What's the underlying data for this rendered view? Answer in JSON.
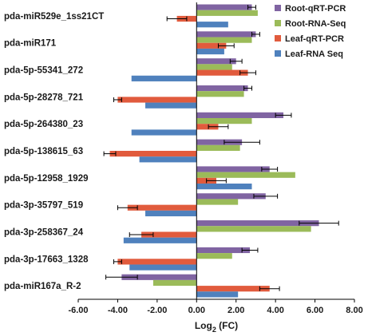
{
  "chart_data": {
    "type": "bar",
    "orientation": "horizontal",
    "categories": [
      "pda-miR529e_1ss21CT",
      "pda-miR171",
      "pda-5p-55341_272",
      "pda-5p-28278_721",
      "pda-5p-264380_23",
      "pda-5p-138615_63",
      "pda-5p-12958_1929",
      "pda-3p-35797_519",
      "pda-3p-258367_24",
      "pda-3p-17663_1328",
      "pda-miR167a_R-2"
    ],
    "series": [
      {
        "name": "Root-qRT-PCR",
        "color": "#8064a2",
        "values": [
          2.8,
          3.0,
          2.0,
          2.6,
          4.4,
          2.3,
          3.7,
          3.5,
          6.2,
          2.7,
          -3.8
        ],
        "errors": [
          0.2,
          0.2,
          0.3,
          0.2,
          0.4,
          0.9,
          0.4,
          0.6,
          1.0,
          0.4,
          0.8
        ]
      },
      {
        "name": "Root-RNA-Seq",
        "color": "#9bbb59",
        "values": [
          3.1,
          2.8,
          1.8,
          2.4,
          2.8,
          2.2,
          5.0,
          2.1,
          5.8,
          1.8,
          -2.2
        ],
        "errors": []
      },
      {
        "name": "Leaf-qRT-PCR",
        "color": "#e15b3d",
        "values": [
          -1.0,
          1.5,
          2.6,
          -4.0,
          1.1,
          -4.4,
          1.0,
          -3.5,
          -2.8,
          -4.0,
          3.7
        ],
        "errors": [
          0.5,
          0.4,
          0.4,
          0.2,
          0.5,
          0.3,
          0.5,
          0.5,
          0.6,
          0.2,
          0.5
        ]
      },
      {
        "name": "Leaf-RNA Seq",
        "color": "#4f81bd",
        "values": [
          1.6,
          1.4,
          -3.3,
          -2.6,
          -3.3,
          -2.9,
          2.8,
          -2.6,
          -3.7,
          -3.4,
          2.1
        ],
        "errors": []
      }
    ],
    "xlabel": "Log",
    "xlabel_sub": "2",
    "xlabel_suffix": " (FC)",
    "xlim": [
      -6,
      8
    ],
    "xticks": [
      "-6.00",
      "-4.00",
      "-2.00",
      "0.00",
      "2.00",
      "4.00",
      "6.00",
      "8.00"
    ],
    "legend_position": "top-right",
    "grid": false
  }
}
